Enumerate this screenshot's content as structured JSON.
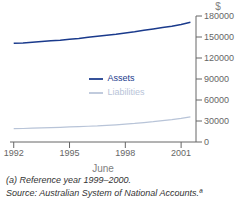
{
  "chart_data": {
    "type": "line",
    "xlabel": "June",
    "ylabel": "$",
    "x": [
      1992,
      1992.5,
      1993,
      1993.5,
      1994,
      1994.5,
      1995,
      1995.5,
      1996,
      1996.5,
      1997,
      1997.5,
      1998,
      1998.5,
      1999,
      1999.5,
      2000,
      2000.5,
      2001,
      2001.5
    ],
    "series": [
      {
        "name": "Assets",
        "color": "#1a3a8c",
        "values": [
          141000,
          141500,
          142500,
          143500,
          144500,
          145500,
          146800,
          148000,
          149500,
          151000,
          152500,
          154000,
          155800,
          157500,
          159500,
          161500,
          163500,
          165500,
          168000,
          171000
        ]
      },
      {
        "name": "Liabilities",
        "color": "#b8c4d8",
        "values": [
          19000,
          19300,
          19700,
          20100,
          20500,
          21000,
          21500,
          22000,
          22500,
          23000,
          23800,
          24600,
          25500,
          26500,
          27800,
          29000,
          30500,
          32000,
          33800,
          36000
        ]
      }
    ],
    "xlim": [
      1991.8,
      2001.8
    ],
    "xticks": [
      1992,
      1995,
      1998,
      2001
    ],
    "ylim": [
      0,
      180000
    ],
    "yticks": [
      0,
      30000,
      60000,
      90000,
      120000,
      150000,
      180000
    ],
    "grid": false,
    "legend": "center",
    "annotations": [
      "(a)  Reference year 1999–2000.",
      "Source: Australian System of National Accounts.ª"
    ]
  }
}
